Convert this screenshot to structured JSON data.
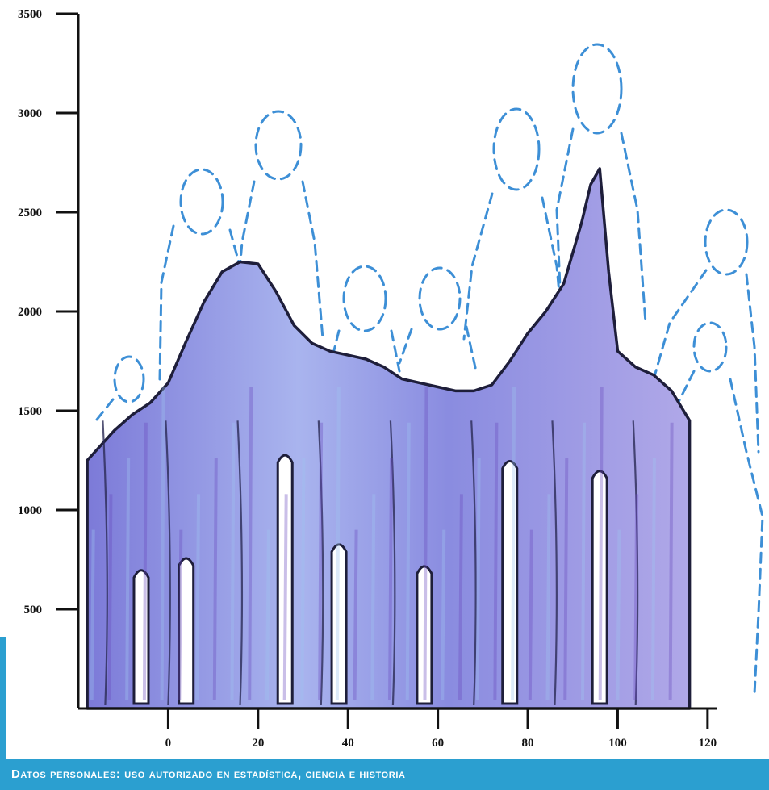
{
  "colors": {
    "accent": "#2b9fd0",
    "silhouette_fill": "#8f8fe0",
    "silhouette_stroke": "#1e1e3a",
    "dashed_outline": "#3d8fd6",
    "axis": "#111111"
  },
  "caption": "Datos personales: uso autorizado en estadística, ciencia e historia",
  "chart_data": {
    "type": "area",
    "title": "",
    "xlabel": "",
    "ylabel": "",
    "xlim": [
      -20,
      122
    ],
    "ylim": [
      0,
      3500
    ],
    "x_ticks": [
      "0",
      "20",
      "40",
      "60",
      "80",
      "100",
      "120"
    ],
    "y_ticks": [
      "500",
      "1000",
      "1500",
      "2000",
      "2500",
      "3000",
      "3500"
    ],
    "grid": false,
    "legend": "none",
    "series": [
      {
        "x": [
          -18,
          -12,
          -8,
          -4,
          0,
          4,
          8,
          12,
          16,
          20,
          24,
          28,
          32,
          36,
          40,
          44,
          48,
          52,
          56,
          60,
          64,
          68,
          72,
          76,
          80,
          84,
          88,
          92,
          94,
          96,
          98,
          100,
          104,
          108,
          112,
          116
        ],
        "values": [
          1250,
          1400,
          1480,
          1540,
          1640,
          1850,
          2050,
          2200,
          2250,
          2240,
          2100,
          1930,
          1840,
          1800,
          1780,
          1760,
          1720,
          1660,
          1640,
          1620,
          1600,
          1600,
          1630,
          1750,
          1890,
          2000,
          2140,
          2450,
          2640,
          2720,
          2200,
          1800,
          1720,
          1680,
          1600,
          1450
        ]
      }
    ]
  }
}
